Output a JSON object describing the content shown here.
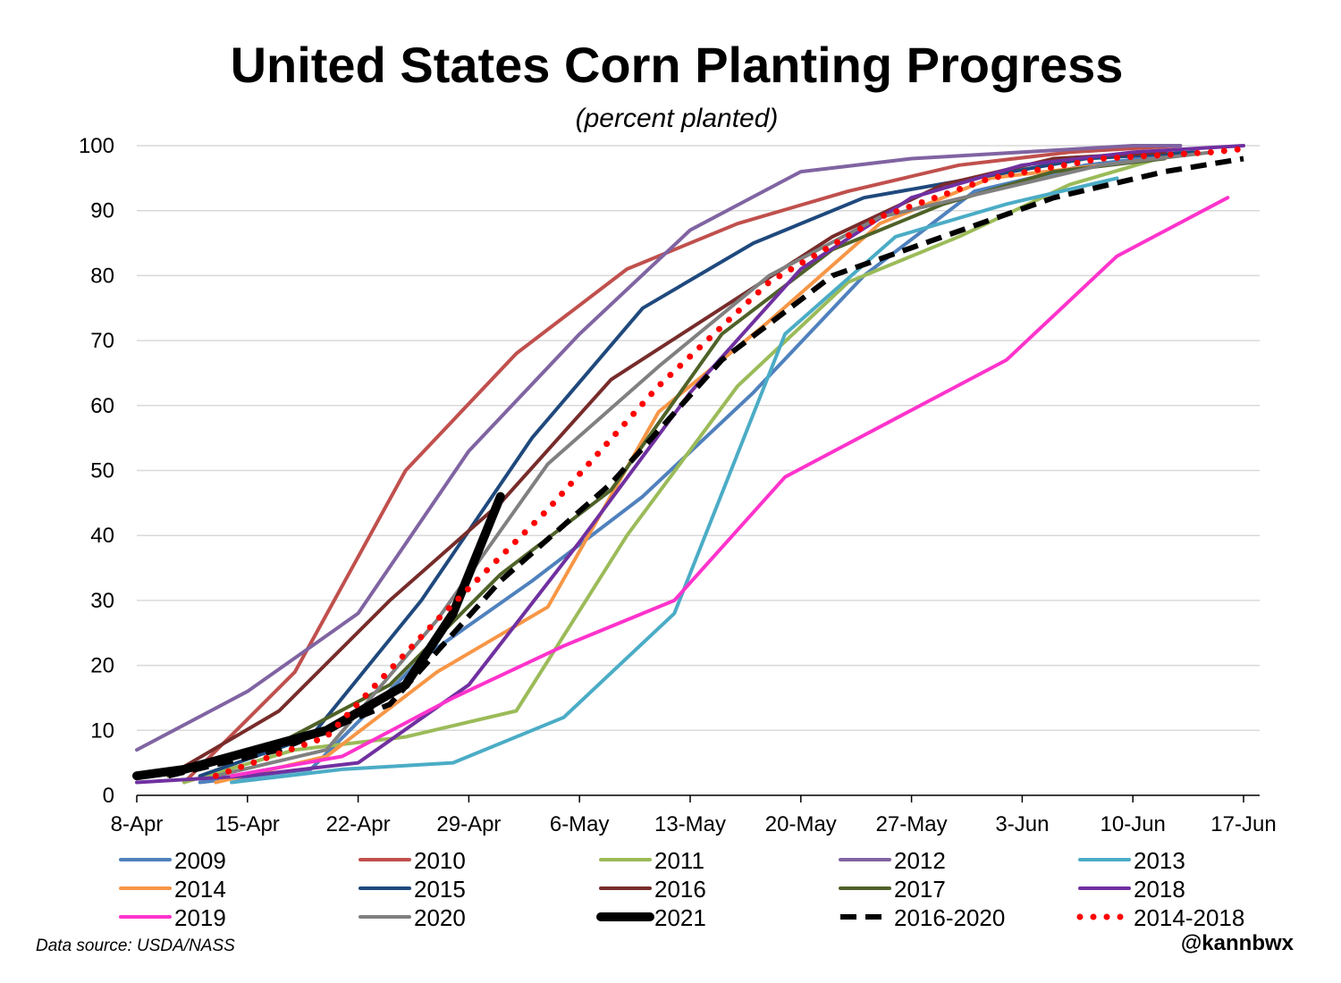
{
  "chart_data": {
    "type": "line",
    "title": "United States Corn Planting Progress",
    "subtitle": "(percent planted)",
    "xlabel": "",
    "ylabel": "",
    "ylim": [
      0,
      100
    ],
    "yticks": [
      0,
      10,
      20,
      30,
      40,
      50,
      60,
      70,
      80,
      90,
      100
    ],
    "xlim": [
      0,
      70
    ],
    "x_unit": "days since 8-Apr",
    "xticks": [
      {
        "value": 0,
        "label": "8-Apr"
      },
      {
        "value": 7,
        "label": "15-Apr"
      },
      {
        "value": 14,
        "label": "22-Apr"
      },
      {
        "value": 21,
        "label": "29-Apr"
      },
      {
        "value": 28,
        "label": "6-May"
      },
      {
        "value": 35,
        "label": "13-May"
      },
      {
        "value": 42,
        "label": "20-May"
      },
      {
        "value": 49,
        "label": "27-May"
      },
      {
        "value": 56,
        "label": "3-Jun"
      },
      {
        "value": 63,
        "label": "10-Jun"
      },
      {
        "value": 70,
        "label": "17-Jun"
      }
    ],
    "grid": true,
    "legend_position": "bottom",
    "source": "Data source: USDA/NASS",
    "handle": "@kannbwx",
    "series": [
      {
        "name": "2009",
        "color": "#4f81bd",
        "style": "solid",
        "width": 4,
        "points": [
          [
            4,
            2
          ],
          [
            11,
            4
          ],
          [
            18,
            21
          ],
          [
            25,
            33
          ],
          [
            32,
            46
          ],
          [
            39,
            62
          ],
          [
            46,
            80
          ],
          [
            53,
            93
          ],
          [
            60,
            97
          ],
          [
            67,
            99
          ]
        ]
      },
      {
        "name": "2010",
        "color": "#c0504d",
        "style": "solid",
        "width": 4,
        "points": [
          [
            3,
            2
          ],
          [
            10,
            19
          ],
          [
            17,
            50
          ],
          [
            24,
            68
          ],
          [
            31,
            81
          ],
          [
            38,
            88
          ],
          [
            45,
            93
          ],
          [
            52,
            97
          ],
          [
            59,
            99
          ],
          [
            66,
            100
          ]
        ]
      },
      {
        "name": "2011",
        "color": "#9bbb59",
        "style": "solid",
        "width": 4,
        "points": [
          [
            3,
            2
          ],
          [
            10,
            7
          ],
          [
            17,
            9
          ],
          [
            24,
            13
          ],
          [
            31,
            40
          ],
          [
            38,
            63
          ],
          [
            45,
            79
          ],
          [
            52,
            86
          ],
          [
            59,
            94
          ],
          [
            66,
            99
          ]
        ]
      },
      {
        "name": "2012",
        "color": "#8064a2",
        "style": "solid",
        "width": 4,
        "points": [
          [
            0,
            7
          ],
          [
            7,
            16
          ],
          [
            14,
            28
          ],
          [
            21,
            53
          ],
          [
            28,
            71
          ],
          [
            35,
            87
          ],
          [
            42,
            96
          ],
          [
            49,
            98
          ],
          [
            56,
            99
          ],
          [
            63,
            100
          ],
          [
            66,
            100
          ]
        ]
      },
      {
        "name": "2013",
        "color": "#4bacc6",
        "style": "solid",
        "width": 4,
        "points": [
          [
            6,
            2
          ],
          [
            13,
            4
          ],
          [
            20,
            5
          ],
          [
            27,
            12
          ],
          [
            34,
            28
          ],
          [
            41,
            71
          ],
          [
            48,
            86
          ],
          [
            55,
            91
          ],
          [
            62,
            95
          ]
        ]
      },
      {
        "name": "2014",
        "color": "#f79646",
        "style": "solid",
        "width": 4,
        "points": [
          [
            5,
            2
          ],
          [
            12,
            6
          ],
          [
            19,
            19
          ],
          [
            26,
            29
          ],
          [
            33,
            59
          ],
          [
            40,
            73
          ],
          [
            47,
            88
          ],
          [
            54,
            95
          ],
          [
            61,
            97
          ],
          [
            68,
            99
          ]
        ]
      },
      {
        "name": "2015",
        "color": "#1f497d",
        "style": "solid",
        "width": 4,
        "points": [
          [
            4,
            3
          ],
          [
            11,
            9
          ],
          [
            18,
            30
          ],
          [
            25,
            55
          ],
          [
            32,
            75
          ],
          [
            39,
            85
          ],
          [
            46,
            92
          ],
          [
            53,
            95
          ],
          [
            60,
            98
          ],
          [
            67,
            99
          ]
        ]
      },
      {
        "name": "2016",
        "color": "#772c2a",
        "style": "solid",
        "width": 4,
        "points": [
          [
            2,
            3
          ],
          [
            9,
            13
          ],
          [
            16,
            30
          ],
          [
            23,
            45
          ],
          [
            30,
            64
          ],
          [
            37,
            75
          ],
          [
            44,
            86
          ],
          [
            51,
            94
          ],
          [
            58,
            98
          ],
          [
            65,
            99
          ]
        ]
      },
      {
        "name": "2017",
        "color": "#4f6228",
        "style": "solid",
        "width": 4,
        "points": [
          [
            2,
            3
          ],
          [
            9,
            8
          ],
          [
            16,
            17
          ],
          [
            23,
            34
          ],
          [
            30,
            47
          ],
          [
            37,
            71
          ],
          [
            44,
            84
          ],
          [
            51,
            91
          ],
          [
            58,
            96
          ],
          [
            65,
            98
          ]
        ]
      },
      {
        "name": "2018",
        "color": "#7030a0",
        "style": "solid",
        "width": 4,
        "points": [
          [
            0,
            2
          ],
          [
            7,
            3
          ],
          [
            14,
            5
          ],
          [
            21,
            17
          ],
          [
            28,
            39
          ],
          [
            35,
            62
          ],
          [
            42,
            81
          ],
          [
            49,
            92
          ],
          [
            56,
            97
          ],
          [
            63,
            99
          ],
          [
            70,
            100
          ]
        ]
      },
      {
        "name": "2019",
        "color": "#ff33cc",
        "style": "solid",
        "width": 4,
        "points": [
          [
            6,
            3
          ],
          [
            13,
            6
          ],
          [
            20,
            15
          ],
          [
            27,
            23
          ],
          [
            34,
            30
          ],
          [
            41,
            49
          ],
          [
            48,
            58
          ],
          [
            55,
            67
          ],
          [
            62,
            83
          ],
          [
            69,
            92
          ]
        ]
      },
      {
        "name": "2020",
        "color": "#808080",
        "style": "solid",
        "width": 4,
        "points": [
          [
            5,
            3
          ],
          [
            12,
            7
          ],
          [
            19,
            27
          ],
          [
            26,
            51
          ],
          [
            33,
            66
          ],
          [
            40,
            80
          ],
          [
            47,
            89
          ],
          [
            54,
            93
          ],
          [
            61,
            97
          ],
          [
            68,
            99
          ]
        ]
      },
      {
        "name": "2021",
        "color": "#000000",
        "style": "solid",
        "width": 10,
        "points": [
          [
            0,
            3
          ],
          [
            3,
            4
          ],
          [
            6,
            6
          ],
          [
            9,
            8
          ],
          [
            12,
            10
          ],
          [
            17,
            17
          ],
          [
            20,
            28
          ],
          [
            23,
            46
          ]
        ]
      },
      {
        "name": "2016-2020",
        "color": "#000000",
        "style": "dashed",
        "width": 6,
        "points": [
          [
            2,
            3
          ],
          [
            9,
            7
          ],
          [
            16,
            14
          ],
          [
            23,
            33
          ],
          [
            30,
            48
          ],
          [
            37,
            67
          ],
          [
            44,
            80
          ],
          [
            51,
            86
          ],
          [
            58,
            92
          ],
          [
            65,
            96
          ],
          [
            70,
            98
          ]
        ]
      },
      {
        "name": "2014-2018",
        "color": "#ff0000",
        "style": "dotted",
        "width": 7,
        "points": [
          [
            5,
            3
          ],
          [
            12,
            9
          ],
          [
            19,
            27
          ],
          [
            26,
            44
          ],
          [
            33,
            63
          ],
          [
            40,
            79
          ],
          [
            47,
            89
          ],
          [
            54,
            95
          ],
          [
            61,
            98
          ],
          [
            68,
            99
          ],
          [
            70,
            99.5
          ]
        ]
      }
    ]
  }
}
